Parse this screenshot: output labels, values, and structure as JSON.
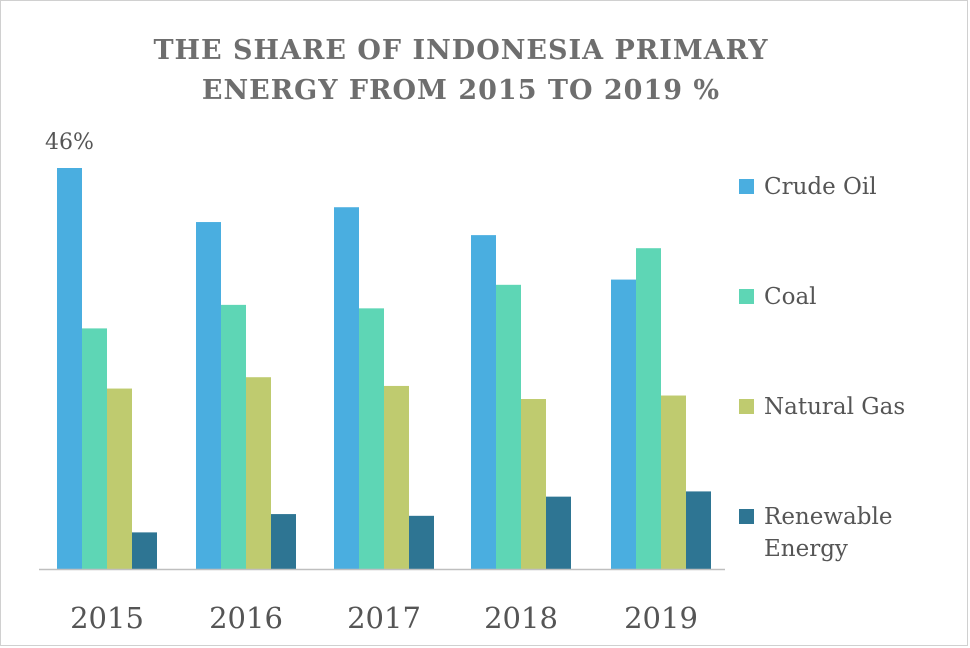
{
  "chart_data": {
    "type": "bar",
    "title_lines": [
      "THE SHARE OF INDONESIA PRIMARY",
      "ENERGY FROM 2015 TO 2019 %"
    ],
    "categories": [
      "2015",
      "2016",
      "2017",
      "2018",
      "2019"
    ],
    "series": [
      {
        "name": "Crude Oil",
        "color": "#4aaee0",
        "values": [
          46,
          39.8,
          41.5,
          38.3,
          33.2
        ]
      },
      {
        "name": "Coal",
        "color": "#5ed6b5",
        "values": [
          27.6,
          30.3,
          29.9,
          32.6,
          36.8
        ]
      },
      {
        "name": "Natural Gas",
        "color": "#bfcb6f",
        "values": [
          20.7,
          22,
          21,
          19.5,
          19.9
        ]
      },
      {
        "name": "Renewable Energy",
        "color": "#2e7593",
        "values": [
          4.2,
          6.3,
          6.1,
          8.3,
          8.9
        ]
      }
    ],
    "data_labels": [
      {
        "category": "2015",
        "series": "Crude Oil",
        "text": "46%"
      }
    ],
    "ylim": [
      0,
      46
    ],
    "grid": false,
    "legend_position": "right"
  }
}
